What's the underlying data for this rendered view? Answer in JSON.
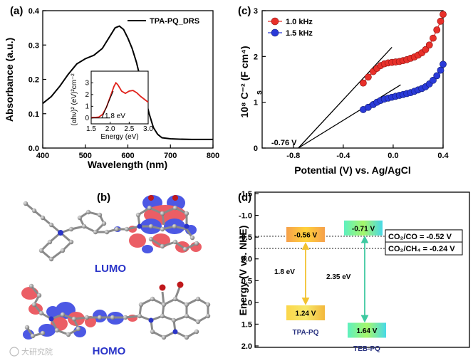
{
  "panels": {
    "a": "(a)",
    "b": "(b)",
    "c": "(c)",
    "d": "(d)"
  },
  "chart_data": [
    {
      "id": "a",
      "type": "line",
      "xlabel": "Wavelength (nm)",
      "ylabel": "Absorbance (a.u.)",
      "xlim": [
        400,
        800
      ],
      "ylim": [
        0,
        0.4
      ],
      "xticks": [
        "400",
        "500",
        "600",
        "700",
        "800"
      ],
      "yticks": [
        "0.0",
        "0.1",
        "0.2",
        "0.3",
        "0.4"
      ],
      "legend": "top-right",
      "series": [
        {
          "name": "TPA-PQ_DRS",
          "color": "#000000",
          "x": [
            400,
            420,
            440,
            460,
            480,
            500,
            520,
            540,
            560,
            570,
            580,
            590,
            600,
            610,
            620,
            630,
            640,
            650,
            660,
            670,
            680,
            700,
            720,
            750,
            780,
            800
          ],
          "y": [
            0.13,
            0.15,
            0.18,
            0.215,
            0.245,
            0.26,
            0.27,
            0.29,
            0.33,
            0.35,
            0.355,
            0.345,
            0.32,
            0.29,
            0.25,
            0.2,
            0.15,
            0.1,
            0.06,
            0.04,
            0.03,
            0.027,
            0.026,
            0.025,
            0.025,
            0.025
          ]
        }
      ],
      "inset": {
        "xlabel": "Energy (eV)",
        "ylabel": "(αhν)² (eV)²cm⁻²",
        "xlim": [
          1.5,
          3.0
        ],
        "ylim": [
          -0.5,
          4
        ],
        "xticks": [
          "1.5",
          "2.0",
          "2.5",
          "3.0"
        ],
        "yticks": [
          "0",
          "1",
          "2",
          "3"
        ],
        "annotation": "1.8 eV",
        "color": "#e0221b",
        "x": [
          1.5,
          1.6,
          1.7,
          1.8,
          1.9,
          2.0,
          2.1,
          2.15,
          2.2,
          2.3,
          2.4,
          2.5,
          2.6,
          2.7,
          2.8,
          2.9,
          3.0
        ],
        "y": [
          0.05,
          0.05,
          0.08,
          0.3,
          0.9,
          1.8,
          2.7,
          3.0,
          2.85,
          2.3,
          2.1,
          2.3,
          2.35,
          2.15,
          1.85,
          1.6,
          1.35
        ],
        "tangent": {
          "x": [
            1.78,
            2.08
          ],
          "y": [
            0,
            2.3
          ]
        }
      }
    },
    {
      "id": "c",
      "type": "scatter",
      "xlabel": "Potential (V) vs. Ag/AgCl",
      "ylabel": "10⁸ C⁻² (F cm⁴)",
      "ylabel_sub": "s",
      "xlim": [
        -1.05,
        0.4
      ],
      "ylim": [
        0,
        3
      ],
      "xticks": [
        "-0.8",
        "-0.4",
        "0.0",
        "0.4"
      ],
      "yticks": [
        "0",
        "1",
        "2",
        "3"
      ],
      "legend": "top-left",
      "annotation": "-0.76 V",
      "series": [
        {
          "name": "1.0 kHz",
          "color": "#e8302a",
          "x": [
            -0.24,
            -0.2,
            -0.16,
            -0.13,
            -0.1,
            -0.07,
            -0.04,
            -0.01,
            0.02,
            0.05,
            0.08,
            0.11,
            0.14,
            0.17,
            0.2,
            0.23,
            0.26,
            0.29,
            0.32,
            0.35,
            0.38,
            0.4
          ],
          "y": [
            1.42,
            1.55,
            1.67,
            1.74,
            1.8,
            1.84,
            1.86,
            1.87,
            1.88,
            1.89,
            1.91,
            1.93,
            1.96,
            1.99,
            2.03,
            2.08,
            2.15,
            2.25,
            2.4,
            2.58,
            2.77,
            2.92
          ]
        },
        {
          "name": "1.5 kHz",
          "color": "#2a3ad8",
          "x": [
            -0.24,
            -0.2,
            -0.16,
            -0.13,
            -0.1,
            -0.07,
            -0.04,
            -0.01,
            0.02,
            0.05,
            0.08,
            0.11,
            0.14,
            0.17,
            0.2,
            0.23,
            0.26,
            0.29,
            0.32,
            0.35,
            0.38,
            0.4
          ],
          "y": [
            0.84,
            0.89,
            0.95,
            1.0,
            1.04,
            1.07,
            1.09,
            1.11,
            1.13,
            1.15,
            1.17,
            1.19,
            1.21,
            1.24,
            1.27,
            1.3,
            1.34,
            1.4,
            1.48,
            1.58,
            1.7,
            1.83
          ]
        }
      ],
      "fits": [
        {
          "x": [
            -0.76,
            -0.01
          ],
          "y": [
            0,
            2.2
          ]
        },
        {
          "x": [
            -0.76,
            0.06
          ],
          "y": [
            0,
            1.38
          ]
        }
      ]
    },
    {
      "id": "d",
      "type": "bar",
      "ylabel": "Energy (V vs. NHE)",
      "ylim": [
        -1.5,
        2.0
      ],
      "yticks": [
        "-1.5",
        "-1.0",
        "-0.5",
        "0.0",
        "0.5",
        "1.0",
        "1.5",
        "2.0"
      ],
      "reference_lines": [
        {
          "label": "CO₂/CO  = -0.52 V",
          "y": -0.52
        },
        {
          "label": "CO₂/CH₄ = -0.24 V",
          "y": -0.24
        }
      ],
      "materials": [
        {
          "name": "TPA-PQ",
          "cb": -0.56,
          "vb": 1.24,
          "cb_label": "-0.56 V",
          "vb_label": "1.24 V",
          "gap_label": "1.8 eV",
          "arrow_color": "#f2c230"
        },
        {
          "name": "TEB-PQ",
          "cb": -0.71,
          "vb": 1.64,
          "cb_label": "-0.71 V",
          "vb_label": "1.64 V",
          "gap_label": "2.35 eV",
          "arrow_color": "#3ec9a0"
        }
      ]
    }
  ],
  "orbitals": {
    "lumo": "LUMO",
    "homo": "HOMO"
  },
  "watermark": "大研究院"
}
